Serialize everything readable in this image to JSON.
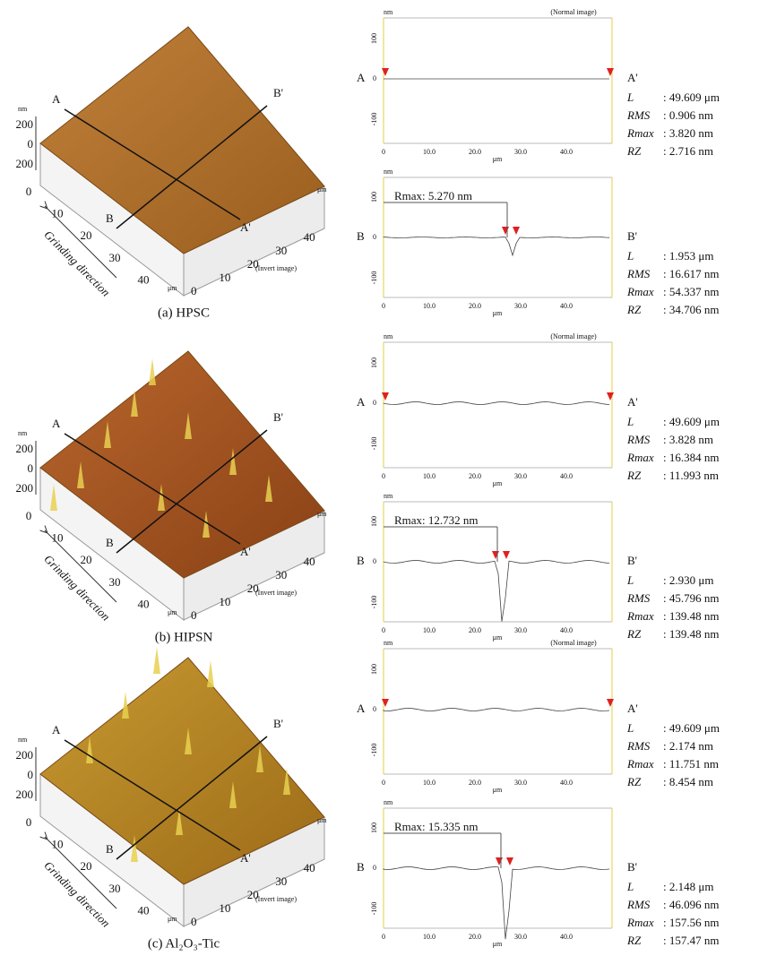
{
  "panels": [
    {
      "caption": "(a) HPSC",
      "surface": {
        "z_unit": "nm",
        "z_ticks": [
          "200",
          "0",
          "200"
        ],
        "x_ticks": [
          "0",
          "10",
          "20",
          "30",
          "40"
        ],
        "x_unit": "μm",
        "y_ticks": [
          "0",
          "10",
          "20",
          "30",
          "40"
        ],
        "y_unit": "μm",
        "line_a": [
          "A",
          "A'"
        ],
        "line_b": [
          "B",
          "B'"
        ],
        "direction": "Grinding direction",
        "note": "(Invert image)"
      },
      "profiles": [
        {
          "unit": "nm",
          "note": "(Normal image)",
          "y_ticks": [
            "100",
            "0",
            "-100"
          ],
          "x_ticks": [
            "0",
            "10.0",
            "20.0",
            "30.0",
            "40.0"
          ],
          "x_unit": "μm",
          "start": "A",
          "end": "A'",
          "stats": [
            [
              "L",
              ": 49.609 μm"
            ],
            [
              "RMS",
              ": 0.906 nm"
            ],
            [
              "Rmax",
              ": 3.820 nm"
            ],
            [
              "RZ",
              ": 2.716 nm"
            ]
          ]
        },
        {
          "unit": "nm",
          "annotation": "Rmax: 5.270 nm",
          "y_ticks": [
            "100",
            "0",
            "-100"
          ],
          "x_ticks": [
            "0",
            "10.0",
            "20.0",
            "30.0",
            "40.0"
          ],
          "x_unit": "μm",
          "start": "B",
          "end": "B'",
          "stats": [
            [
              "L",
              ": 1.953 μm"
            ],
            [
              "RMS",
              ": 16.617 nm"
            ],
            [
              "Rmax",
              ": 54.337 nm"
            ],
            [
              "RZ",
              ": 34.706 nm"
            ]
          ]
        }
      ]
    },
    {
      "caption": "(b) HIPSN",
      "surface": {
        "z_unit": "nm",
        "z_ticks": [
          "200",
          "0",
          "200"
        ],
        "x_ticks": [
          "0",
          "10",
          "20",
          "30",
          "40"
        ],
        "x_unit": "μm",
        "y_ticks": [
          "0",
          "10",
          "20",
          "30",
          "40"
        ],
        "y_unit": "μm",
        "line_a": [
          "A",
          "A'"
        ],
        "line_b": [
          "B",
          "B'"
        ],
        "direction": "Grinding direction",
        "note": "(Invert image)"
      },
      "profiles": [
        {
          "unit": "nm",
          "note": "(Normal image)",
          "y_ticks": [
            "100",
            "0",
            "-100"
          ],
          "x_ticks": [
            "0",
            "10.0",
            "20.0",
            "30.0",
            "40.0"
          ],
          "x_unit": "μm",
          "start": "A",
          "end": "A'",
          "stats": [
            [
              "L",
              ": 49.609 μm"
            ],
            [
              "RMS",
              ": 3.828 nm"
            ],
            [
              "Rmax",
              ": 16.384 nm"
            ],
            [
              "RZ",
              ": 11.993 nm"
            ]
          ]
        },
        {
          "unit": "nm",
          "annotation": "Rmax: 12.732 nm",
          "y_ticks": [
            "100",
            "0",
            "-100"
          ],
          "x_ticks": [
            "0",
            "10.0",
            "20.0",
            "30.0",
            "40.0"
          ],
          "x_unit": "μm",
          "start": "B",
          "end": "B'",
          "stats": [
            [
              "L",
              ": 2.930 μm"
            ],
            [
              "RMS",
              ": 45.796 nm"
            ],
            [
              "Rmax",
              ": 139.48 nm"
            ],
            [
              "RZ",
              ": 139.48 nm"
            ]
          ]
        }
      ]
    },
    {
      "caption": "(c) Al₂O₃-Tic",
      "surface": {
        "z_unit": "nm",
        "z_ticks": [
          "200",
          "0",
          "200"
        ],
        "x_ticks": [
          "0",
          "10",
          "20",
          "30",
          "40"
        ],
        "x_unit": "μm",
        "y_ticks": [
          "0",
          "10",
          "20",
          "30",
          "40"
        ],
        "y_unit": "μm",
        "line_a": [
          "A",
          "A'"
        ],
        "line_b": [
          "B",
          "B'"
        ],
        "direction": "Grinding direction",
        "note": "(Invert image)"
      },
      "profiles": [
        {
          "unit": "nm",
          "note": "(Normal image)",
          "y_ticks": [
            "100",
            "0",
            "-100"
          ],
          "x_ticks": [
            "0",
            "10.0",
            "20.0",
            "30.0",
            "40.0"
          ],
          "x_unit": "μm",
          "start": "A",
          "end": "A'",
          "stats": [
            [
              "L",
              ": 49.609 μm"
            ],
            [
              "RMS",
              ": 2.174 nm"
            ],
            [
              "Rmax",
              ": 11.751 nm"
            ],
            [
              "RZ",
              ": 8.454 nm"
            ]
          ]
        },
        {
          "unit": "nm",
          "annotation": "Rmax: 15.335 nm",
          "y_ticks": [
            "100",
            "0",
            "-100"
          ],
          "x_ticks": [
            "0",
            "10.0",
            "20.0",
            "30.0",
            "40.0"
          ],
          "x_unit": "μm",
          "start": "B",
          "end": "B'",
          "stats": [
            [
              "L",
              ": 2.148 μm"
            ],
            [
              "RMS",
              ": 46.096 nm"
            ],
            [
              "Rmax",
              ": 157.56 nm"
            ],
            [
              "RZ",
              ": 157.47 nm"
            ]
          ]
        }
      ]
    }
  ]
}
